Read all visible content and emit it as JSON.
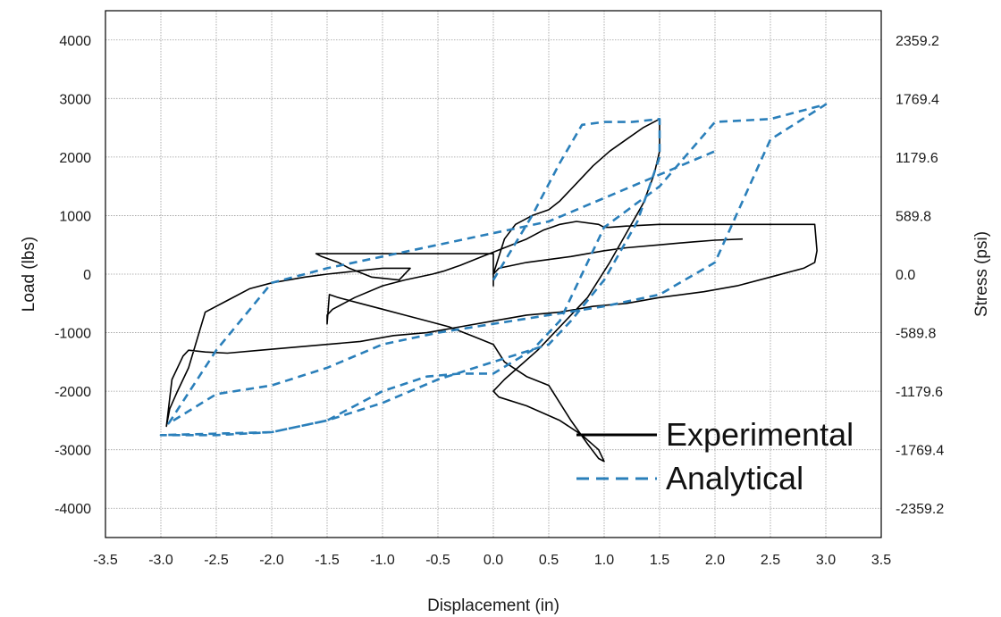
{
  "chart_data": {
    "type": "line",
    "xlabel": "Displacement (in)",
    "ylabel": "Load (lbs)",
    "y2label": "Stress (psi)",
    "xlim": [
      -3.5,
      3.5
    ],
    "ylim": [
      -4500,
      4500
    ],
    "grid": true,
    "x_ticks": [
      -3.5,
      -3.0,
      -2.5,
      -2.0,
      -1.5,
      -1.0,
      -0.5,
      0.0,
      0.5,
      1.0,
      1.5,
      2.0,
      2.5,
      3.0,
      3.5
    ],
    "x_tick_labels": [
      "-3.5",
      "-3.0",
      "-2.5",
      "-2.0",
      "-1.5",
      "-1.0",
      "-0.5",
      "0.0",
      "0.5",
      "1.0",
      "1.5",
      "2.0",
      "2.5",
      "3.0",
      "3.5"
    ],
    "y_ticks": [
      4000,
      3000,
      2000,
      1000,
      0,
      -1000,
      -2000,
      -3000,
      -4000
    ],
    "y_tick_labels": [
      "4000",
      "3000",
      "2000",
      "1000",
      "0",
      "-1000",
      "-2000",
      "-3000",
      "-4000"
    ],
    "y2_tick_labels": [
      "2359.2",
      "1769.4",
      "1179.6",
      "589.8",
      "0.0",
      "-589.8",
      "-1179.6",
      "-1769.4",
      "-2359.2"
    ],
    "legend_position": "bottom-right",
    "series": [
      {
        "name": "Experimental",
        "color": "#000000",
        "dash": "solid",
        "x": [
          0.0,
          0.1,
          0.2,
          0.35,
          0.5,
          0.6,
          0.75,
          0.9,
          1.05,
          1.2,
          1.35,
          1.45,
          1.5,
          1.5,
          1.45,
          1.35,
          1.2,
          1.05,
          0.95,
          0.85,
          0.7,
          0.55,
          0.4,
          0.25,
          0.1,
          0.0,
          0.05,
          0.3,
          0.6,
          0.8,
          0.95,
          1.0,
          0.95,
          0.85,
          0.7,
          0.5,
          0.3,
          0.1,
          0.0,
          -0.2,
          -0.4,
          -0.6,
          -0.8,
          -1.0,
          -1.2,
          -1.4,
          -1.48,
          -1.5,
          -1.5,
          -1.45,
          -1.35,
          -1.25,
          -1.0,
          -0.8,
          -0.55,
          -0.45,
          -0.3,
          -0.1,
          0.1,
          0.3,
          0.45,
          0.6,
          0.75,
          0.95,
          1.0,
          1.05,
          1.2,
          1.5,
          1.8,
          2.1,
          2.4,
          2.7,
          2.9,
          2.92,
          2.9,
          2.8,
          2.5,
          2.2,
          1.9,
          1.5,
          1.2,
          0.9,
          0.6,
          0.3,
          0.0,
          -0.3,
          -0.6,
          -0.9,
          -1.2,
          -1.5,
          -1.8,
          -2.1,
          -2.4,
          -2.6,
          -2.75,
          -2.8,
          -2.9,
          -2.95,
          -2.92,
          -2.85,
          -2.75,
          -2.6,
          -2.4,
          -2.2,
          -2.0,
          -1.7,
          -1.5,
          -1.25,
          -1.0,
          -0.75,
          -0.85,
          -1.1,
          -1.3,
          -1.4,
          -1.55,
          -1.6,
          -1.2,
          -0.8,
          -0.4,
          0.0,
          0.0,
          0.0,
          0.05,
          0.3,
          0.7,
          1.0,
          1.2,
          1.5,
          1.8,
          2.0,
          2.25
        ],
        "y": [
          0,
          600,
          850,
          1000,
          1100,
          1250,
          1550,
          1850,
          2100,
          2300,
          2500,
          2600,
          2650,
          2100,
          1700,
          1200,
          700,
          200,
          -100,
          -400,
          -700,
          -1000,
          -1300,
          -1550,
          -1800,
          -2000,
          -2100,
          -2250,
          -2500,
          -2750,
          -3000,
          -3200,
          -3150,
          -2900,
          -2500,
          -1900,
          -1750,
          -1500,
          -1200,
          -1050,
          -900,
          -800,
          -700,
          -600,
          -500,
          -400,
          -350,
          -850,
          -700,
          -600,
          -500,
          -400,
          -200,
          -100,
          0,
          50,
          150,
          300,
          450,
          600,
          750,
          850,
          900,
          850,
          800,
          800,
          820,
          850,
          850,
          850,
          850,
          850,
          850,
          400,
          200,
          100,
          -50,
          -200,
          -300,
          -400,
          -500,
          -550,
          -650,
          -700,
          -800,
          -900,
          -1000,
          -1050,
          -1150,
          -1200,
          -1250,
          -1300,
          -1350,
          -1330,
          -1300,
          -1400,
          -1800,
          -2600,
          -2300,
          -2000,
          -1600,
          -650,
          -450,
          -250,
          -150,
          -50,
          0,
          50,
          100,
          100,
          -100,
          -50,
          100,
          200,
          300,
          350,
          350,
          350,
          350,
          350,
          -200,
          0,
          100,
          200,
          300,
          400,
          450,
          500,
          550,
          580,
          600
        ]
      },
      {
        "name": "Analytical",
        "color": "#2a7fba",
        "dash": "dashed",
        "x": [
          0.0,
          0.35,
          0.6,
          0.8,
          1.0,
          1.25,
          1.5,
          1.5,
          1.3,
          1.0,
          0.7,
          0.5,
          0.0,
          -0.5,
          -1.0,
          -1.5,
          -2.0,
          -2.5,
          -3.0,
          -2.0,
          -1.5,
          -1.0,
          -0.6,
          -0.3,
          0.0,
          0.35,
          0.6,
          1.0,
          1.5,
          2.0,
          2.5,
          3.0,
          2.5,
          2.0,
          1.5,
          1.0,
          0.5,
          0.0,
          -0.5,
          -1.0,
          -1.5,
          -2.0,
          -2.5,
          -2.93,
          -2.5,
          -2.0,
          -1.5,
          -1.0,
          -0.5,
          0.0,
          0.5,
          1.0,
          1.5,
          2.0
        ],
        "y": [
          -100,
          1000,
          1900,
          2550,
          2600,
          2600,
          2650,
          2000,
          900,
          -100,
          -800,
          -1200,
          -1500,
          -1800,
          -2200,
          -2500,
          -2700,
          -2750,
          -2750,
          -2700,
          -2500,
          -2000,
          -1750,
          -1700,
          -1700,
          -1300,
          -800,
          800,
          1500,
          2600,
          2650,
          2900,
          2300,
          200,
          -350,
          -550,
          -700,
          -850,
          -1000,
          -1200,
          -1600,
          -1900,
          -2050,
          -2550,
          -1300,
          -150,
          100,
          300,
          500,
          700,
          900,
          1300,
          1700,
          2100
        ]
      }
    ]
  }
}
